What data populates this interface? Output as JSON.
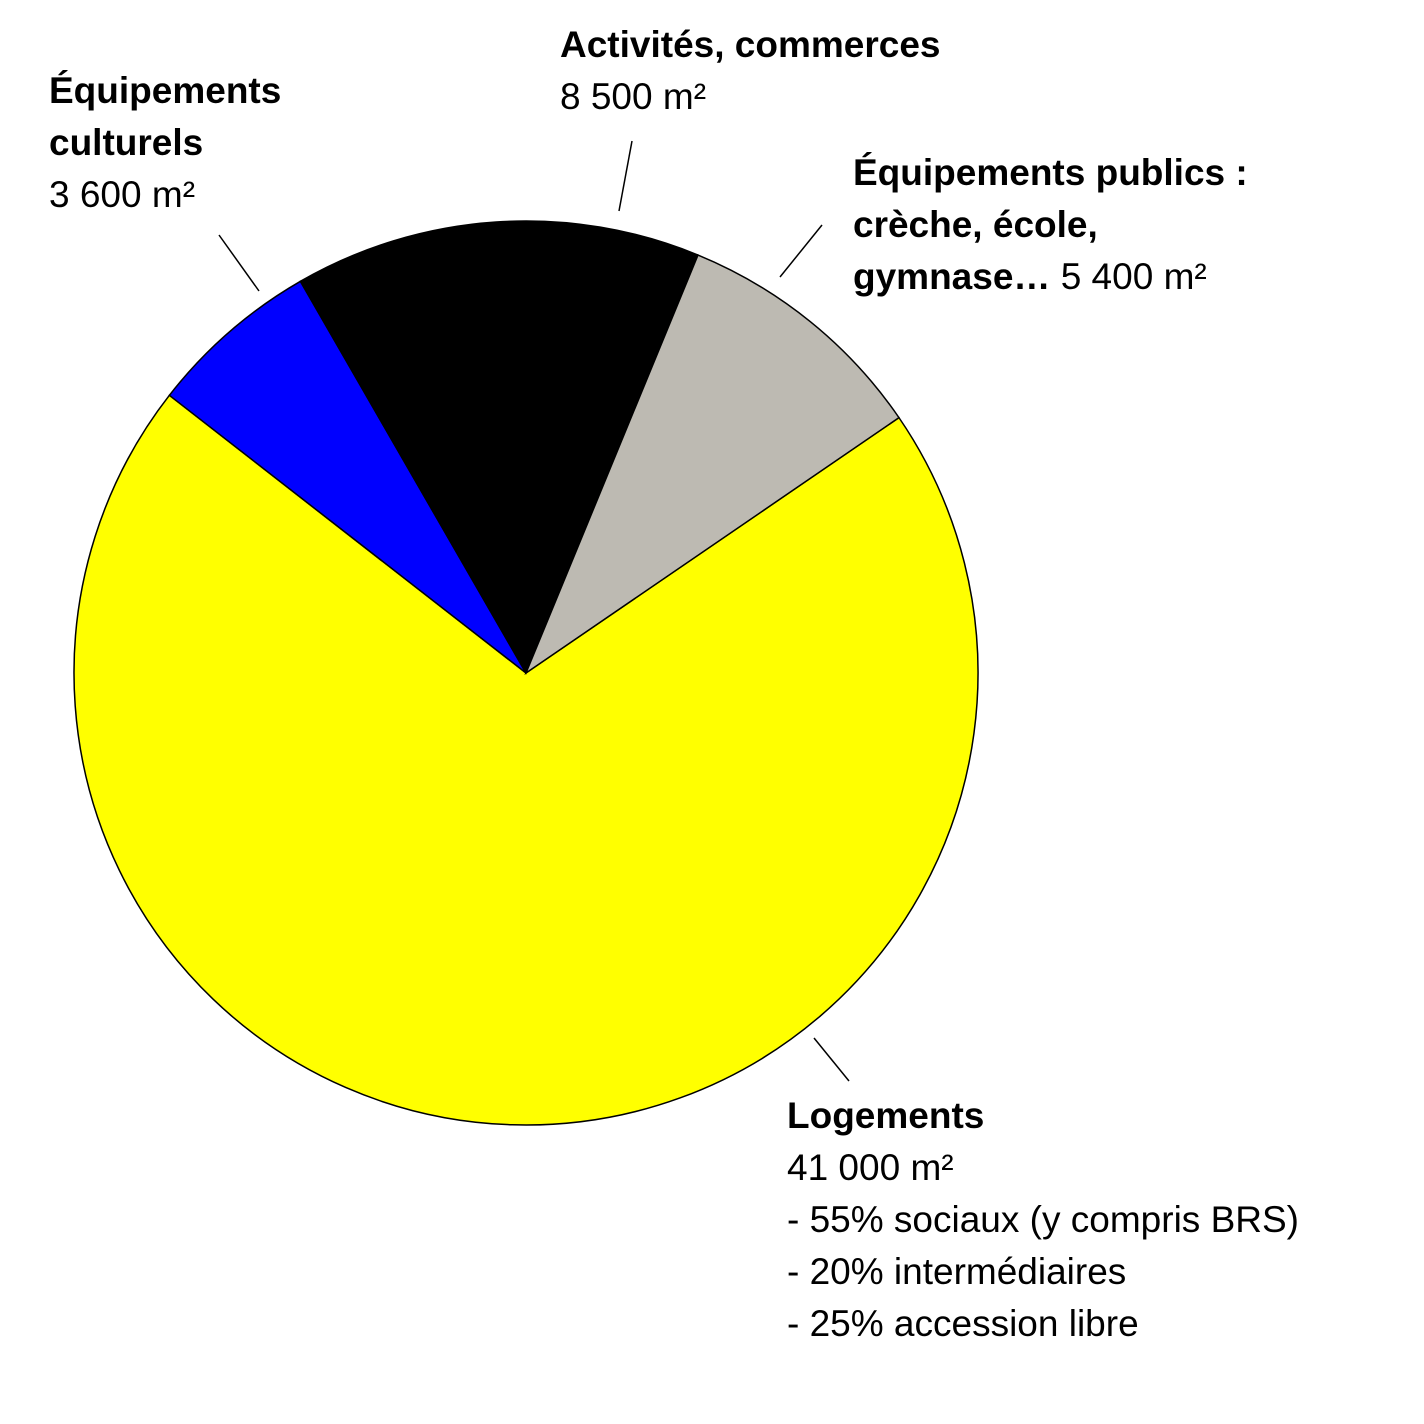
{
  "chart_data": {
    "type": "pie",
    "unit": "m²",
    "slices": [
      {
        "name": "Logements",
        "value": 41000,
        "value_label": "41 000 m²",
        "color": "#ffff00",
        "details": [
          "- 55% sociaux (y compris BRS)",
          "- 20% intermédiaires",
          "- 25% accession libre"
        ]
      },
      {
        "name": "Équipements culturels",
        "value": 3600,
        "value_label": "3 600 m²",
        "color": "#0000ff"
      },
      {
        "name": "Activités, commerces",
        "value": 8500,
        "value_label": "8 500 m²",
        "color": "#000000"
      },
      {
        "name": "Équipements publics : crèche, école, gymnase…",
        "value": 5400,
        "value_label": "5 400 m²",
        "color": "#bdbab2"
      }
    ]
  },
  "labels": {
    "culturels": {
      "line1": "Équipements",
      "line2": "culturels",
      "value": "3 600 m²"
    },
    "activites": {
      "line1": "Activités, commerces",
      "value": "8 500 m²"
    },
    "publics": {
      "line1": "Équipements publics :",
      "line2": "crèche, école,",
      "line3": "gymnase…",
      "value": "5 400 m²"
    },
    "logements": {
      "line1": "Logements",
      "value": "41 000 m²",
      "d1": "- 55% sociaux (y compris BRS)",
      "d2": "- 20% intermédiaires",
      "d3": "- 25% accession libre"
    }
  }
}
